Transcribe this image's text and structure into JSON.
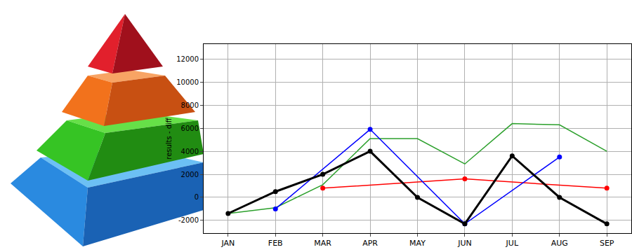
{
  "chart_data": {
    "type": "line",
    "y_label": "results - diff",
    "categories": [
      "JAN",
      "FEB",
      "MAR",
      "APR",
      "MAY",
      "JUN",
      "JUL",
      "AUG",
      "SEP"
    ],
    "series": [
      {
        "color": "#2ca02c",
        "marker": "none",
        "line_style": "solid",
        "values": [
          -1400,
          -900,
          1100,
          5100,
          5100,
          2900,
          6400,
          6300,
          4000
        ]
      },
      {
        "color": "#ff0000",
        "marker": "circle",
        "line_style": "solid",
        "values": [
          null,
          null,
          800,
          null,
          null,
          1600,
          null,
          null,
          800
        ]
      },
      {
        "color": "#0000ff",
        "marker": "circle",
        "line_style": "solid",
        "values": [
          null,
          -1000,
          null,
          5900,
          null,
          -2300,
          null,
          3500,
          null
        ]
      },
      {
        "color": "#000000",
        "marker": "circle",
        "line_style": "thick",
        "values": [
          -1400,
          500,
          2000,
          4000,
          0,
          -2300,
          3600,
          0,
          -2300
        ]
      }
    ],
    "ylim": [
      -3100,
      13300
    ],
    "yticks": [
      -2000,
      0,
      2000,
      4000,
      6000,
      8000,
      10000,
      12000
    ],
    "grid": true
  }
}
